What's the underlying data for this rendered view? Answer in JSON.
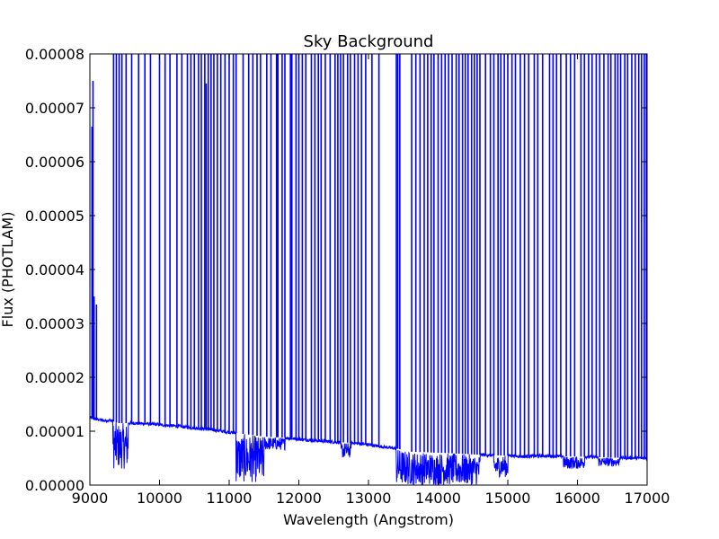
{
  "chart_data": {
    "type": "line",
    "title": "Sky Background",
    "xlabel": "Wavelength (Angstrom)",
    "ylabel": "Flux (PHOTLAM)",
    "xlim": [
      9000,
      17000
    ],
    "ylim": [
      0,
      8e-05
    ],
    "x_ticks": [
      9000,
      10000,
      11000,
      12000,
      13000,
      14000,
      15000,
      16000,
      17000
    ],
    "x_tick_labels": [
      "9000",
      "10000",
      "11000",
      "12000",
      "13000",
      "14000",
      "15000",
      "16000",
      "17000"
    ],
    "y_ticks": [
      0,
      1e-05,
      2e-05,
      3e-05,
      4e-05,
      5e-05,
      6e-05,
      7e-05,
      8e-05
    ],
    "y_tick_labels": [
      "0.00000",
      "0.00001",
      "0.00002",
      "0.00003",
      "0.00004",
      "0.00005",
      "0.00006",
      "0.00007",
      "0.00008"
    ],
    "grid": false,
    "series": [
      {
        "color": "#0000ff",
        "continuum": [
          [
            9000,
            1.25e-05
          ],
          [
            9100,
            1.22e-05
          ],
          [
            9200,
            1.2e-05
          ],
          [
            9300,
            1.2e-05
          ],
          [
            9400,
            1.15e-05
          ],
          [
            9500,
            1.15e-05
          ],
          [
            9600,
            1.15e-05
          ],
          [
            9800,
            1.14e-05
          ],
          [
            10000,
            1.12e-05
          ],
          [
            10200,
            1.1e-05
          ],
          [
            10500,
            1.06e-05
          ],
          [
            10800,
            1.02e-05
          ],
          [
            11000,
            9.8e-06
          ],
          [
            11200,
            9.5e-06
          ],
          [
            11500,
            9e-06
          ],
          [
            11800,
            8.8e-06
          ],
          [
            12000,
            8.5e-06
          ],
          [
            12200,
            8.3e-06
          ],
          [
            12500,
            8e-06
          ],
          [
            12800,
            7.8e-06
          ],
          [
            13000,
            7.5e-06
          ],
          [
            13200,
            7.1e-06
          ],
          [
            13400,
            6.8e-06
          ],
          [
            13600,
            6.2e-06
          ],
          [
            13800,
            6.1e-06
          ],
          [
            14000,
            6e-06
          ],
          [
            14200,
            5.9e-06
          ],
          [
            14500,
            5.7e-06
          ],
          [
            14800,
            5.5e-06
          ],
          [
            15000,
            5.5e-06
          ],
          [
            15200,
            5.3e-06
          ],
          [
            15500,
            5.4e-06
          ],
          [
            16000,
            5.3e-06
          ],
          [
            16500,
            5.1e-06
          ],
          [
            17000,
            5e-06
          ]
        ],
        "absorption_bands": [
          {
            "range": [
              9330,
              9550
            ],
            "floor": 3e-06
          },
          {
            "range": [
              11100,
              11500
            ],
            "floor": 5e-07
          },
          {
            "range": [
              11500,
              11800
            ],
            "floor": 6.5e-06
          },
          {
            "range": [
              12600,
              12750
            ],
            "floor": 5e-06
          },
          {
            "range": [
              13400,
              14600
            ],
            "floor": 0.0
          },
          {
            "range": [
              14800,
              15000
            ],
            "floor": 1.5e-06
          },
          {
            "range": [
              15800,
              16100
            ],
            "floor": 3e-06
          },
          {
            "range": [
              16300,
              16600
            ],
            "floor": 3.5e-06
          }
        ],
        "emission_lines": [
          [
            9030,
            6.65e-05
          ],
          [
            9045,
            7.5e-05
          ],
          [
            9060,
            3.5e-05
          ],
          [
            9095,
            3.35e-05
          ],
          [
            9340,
            8e-05
          ],
          [
            9380,
            8e-05
          ],
          [
            9420,
            8e-05
          ],
          [
            9460,
            8e-05
          ],
          [
            9520,
            8e-05
          ],
          [
            9600,
            8e-05
          ],
          [
            9700,
            8e-05
          ],
          [
            9790,
            8e-05
          ],
          [
            9870,
            8e-05
          ],
          [
            10000,
            8e-05
          ],
          [
            10080,
            8e-05
          ],
          [
            10150,
            8e-05
          ],
          [
            10250,
            8e-05
          ],
          [
            10320,
            8e-05
          ],
          [
            10400,
            8e-05
          ],
          [
            10450,
            8e-05
          ],
          [
            10500,
            8e-05
          ],
          [
            10560,
            8e-05
          ],
          [
            10600,
            8e-05
          ],
          [
            10650,
            8e-05
          ],
          [
            10670,
            7.45e-05
          ],
          [
            10700,
            8e-05
          ],
          [
            10740,
            8e-05
          ],
          [
            10780,
            8e-05
          ],
          [
            10830,
            8e-05
          ],
          [
            10880,
            8e-05
          ],
          [
            10940,
            8e-05
          ],
          [
            11000,
            8e-05
          ],
          [
            11060,
            8e-05
          ],
          [
            11100,
            8e-05
          ],
          [
            11200,
            8e-05
          ],
          [
            11280,
            8e-05
          ],
          [
            11340,
            8e-05
          ],
          [
            11400,
            8e-05
          ],
          [
            11450,
            8e-05
          ],
          [
            11540,
            8e-05
          ],
          [
            11600,
            8e-05
          ],
          [
            11680,
            8e-05
          ],
          [
            11700,
            8e-05
          ],
          [
            11760,
            8e-05
          ],
          [
            11800,
            8e-05
          ],
          [
            11880,
            8e-05
          ],
          [
            11900,
            8e-05
          ],
          [
            11960,
            8e-05
          ],
          [
            12000,
            8e-05
          ],
          [
            12050,
            8e-05
          ],
          [
            12100,
            8e-05
          ],
          [
            12180,
            8e-05
          ],
          [
            12230,
            8e-05
          ],
          [
            12280,
            8e-05
          ],
          [
            12320,
            8e-05
          ],
          [
            12380,
            8e-05
          ],
          [
            12450,
            8e-05
          ],
          [
            12520,
            8e-05
          ],
          [
            12560,
            8e-05
          ],
          [
            12600,
            8e-05
          ],
          [
            12640,
            8e-05
          ],
          [
            12700,
            8e-05
          ],
          [
            12740,
            8e-05
          ],
          [
            12800,
            8e-05
          ],
          [
            12850,
            8e-05
          ],
          [
            12900,
            8e-05
          ],
          [
            12960,
            8e-05
          ],
          [
            13050,
            8e-05
          ],
          [
            13150,
            8e-05
          ],
          [
            13400,
            8e-05
          ],
          [
            13420,
            8e-05
          ],
          [
            13450,
            8e-05
          ],
          [
            13620,
            8e-05
          ],
          [
            13680,
            8e-05
          ],
          [
            13740,
            8e-05
          ],
          [
            13800,
            8e-05
          ],
          [
            13850,
            8e-05
          ],
          [
            13900,
            8e-05
          ],
          [
            13940,
            8e-05
          ],
          [
            14000,
            8e-05
          ],
          [
            14050,
            8e-05
          ],
          [
            14100,
            8e-05
          ],
          [
            14150,
            8e-05
          ],
          [
            14200,
            8e-05
          ],
          [
            14260,
            8e-05
          ],
          [
            14300,
            8e-05
          ],
          [
            14350,
            8e-05
          ],
          [
            14390,
            8e-05
          ],
          [
            14430,
            8e-05
          ],
          [
            14480,
            8e-05
          ],
          [
            14520,
            8e-05
          ],
          [
            14560,
            8e-05
          ],
          [
            14600,
            8e-05
          ],
          [
            14680,
            8e-05
          ],
          [
            14750,
            8e-05
          ],
          [
            14800,
            8e-05
          ],
          [
            14860,
            8e-05
          ],
          [
            14900,
            8e-05
          ],
          [
            14950,
            8e-05
          ],
          [
            15000,
            8e-05
          ],
          [
            15060,
            8e-05
          ],
          [
            15110,
            8e-05
          ],
          [
            15180,
            8e-05
          ],
          [
            15240,
            8e-05
          ],
          [
            15300,
            8e-05
          ],
          [
            15380,
            8e-05
          ],
          [
            15430,
            8e-05
          ],
          [
            15500,
            8e-05
          ],
          [
            15600,
            8e-05
          ],
          [
            15650,
            8e-05
          ],
          [
            15700,
            8e-05
          ],
          [
            15760,
            8e-05
          ],
          [
            15840,
            8e-05
          ],
          [
            15900,
            8e-05
          ],
          [
            15960,
            8e-05
          ],
          [
            16050,
            8e-05
          ],
          [
            16100,
            8e-05
          ],
          [
            16160,
            8e-05
          ],
          [
            16210,
            8e-05
          ],
          [
            16270,
            8e-05
          ],
          [
            16320,
            8e-05
          ],
          [
            16380,
            8e-05
          ],
          [
            16440,
            8e-05
          ],
          [
            16480,
            8e-05
          ],
          [
            16540,
            8e-05
          ],
          [
            16580,
            8e-05
          ],
          [
            16620,
            8e-05
          ],
          [
            16680,
            8e-05
          ],
          [
            16720,
            8e-05
          ],
          [
            16780,
            8e-05
          ],
          [
            16830,
            8e-05
          ],
          [
            16880,
            8e-05
          ],
          [
            16920,
            8e-05
          ],
          [
            16960,
            8e-05
          ],
          [
            16990,
            8e-05
          ]
        ]
      }
    ]
  }
}
